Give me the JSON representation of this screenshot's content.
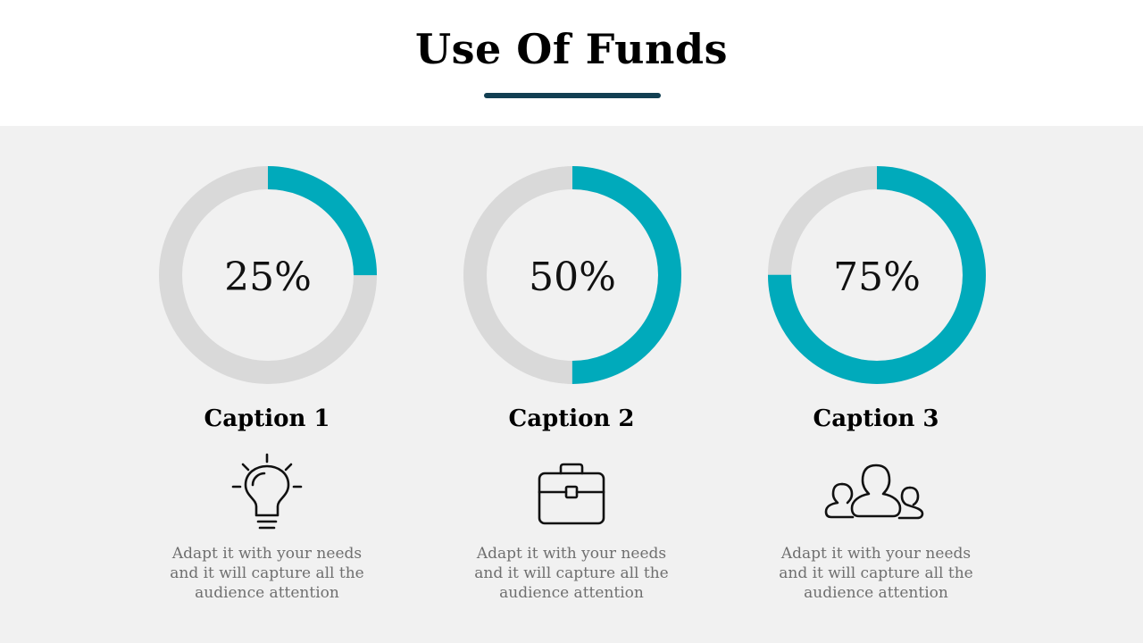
{
  "title": "Use Of Funds",
  "colors": {
    "accent": "#00aabb",
    "track": "#d9d9d9",
    "divider": "#123f52",
    "panel": "#f1f1f1"
  },
  "items": [
    {
      "percent_label": "25%",
      "percent_value": 25,
      "caption": "Caption 1",
      "icon": "lightbulb-icon",
      "description": "Adapt it with your needs and it will capture all the audience attention"
    },
    {
      "percent_label": "50%",
      "percent_value": 50,
      "caption": "Caption 2",
      "icon": "briefcase-icon",
      "description": "Adapt it with your needs and it will capture all the audience attention"
    },
    {
      "percent_label": "75%",
      "percent_value": 75,
      "caption": "Caption 3",
      "icon": "users-group-icon",
      "description": "Adapt it with your needs and it will capture all the audience attention"
    }
  ]
}
